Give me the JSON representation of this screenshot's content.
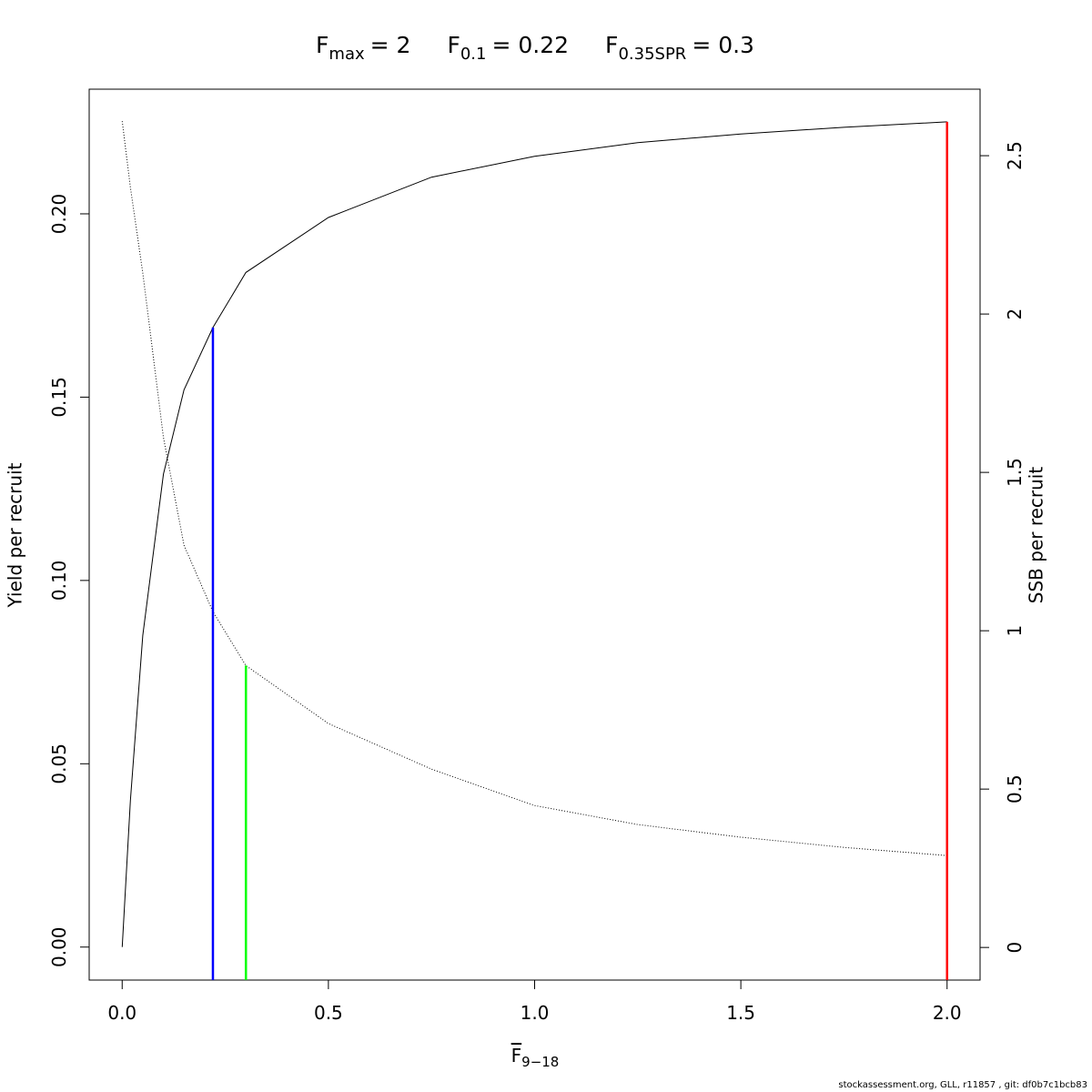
{
  "chart_data": {
    "type": "line",
    "title_parts": [
      {
        "text": "F",
        "sub": "max",
        "rest": "= 2"
      },
      {
        "text": "F",
        "sub": "0.1",
        "rest": "= 0.22"
      },
      {
        "text": "F",
        "sub": "0.35SPR",
        "rest": "= 0.3"
      }
    ],
    "x_label": {
      "text": "F",
      "sub": "9−18"
    },
    "y_label": "Yield per recruit",
    "y2_label": "SSB per recruit",
    "footer": "stockassessment.org, GLL, r11857 , git: df0b7c1bcb83",
    "x": [
      0,
      0.02,
      0.05,
      0.1,
      0.15,
      0.22,
      0.3,
      0.5,
      0.75,
      1,
      1.25,
      1.5,
      1.75,
      2
    ],
    "series": [
      {
        "color": "#000000",
        "linestyle": "solid",
        "values": [
          0,
          0.04,
          0.085,
          0.129,
          0.152,
          0.169,
          0.184,
          0.199,
          0.21,
          0.2157,
          0.2194,
          0.2218,
          0.2236,
          0.2251
        ]
      },
      {
        "color": "#000000",
        "linestyle": "dotted",
        "axis": "y2",
        "values": [
          2.609,
          2.4,
          2.13,
          1.61,
          1.27,
          1.06,
          0.89,
          0.707,
          0.563,
          0.448,
          0.388,
          0.348,
          0.316,
          0.29
        ]
      }
    ],
    "reference_lines": [
      {
        "x": 2,
        "top": 0.2251,
        "axis": "y",
        "color": "#ff0000"
      },
      {
        "x": 0.22,
        "top": 0.169,
        "axis": "y",
        "color": "#0000ff"
      },
      {
        "x": 0.3,
        "top": 0.89,
        "axis": "y2",
        "color": "#00ff00"
      }
    ],
    "xlim": [
      -0.08,
      2.08
    ],
    "ylim": [
      -0.009,
      0.234
    ],
    "y2lim": [
      -0.103,
      2.71
    ],
    "xticks": [
      {
        "value": 0,
        "label": "0.0"
      },
      {
        "value": 0.5,
        "label": "0.5"
      },
      {
        "value": 1,
        "label": "1.0"
      },
      {
        "value": 1.5,
        "label": "1.5"
      },
      {
        "value": 2,
        "label": "2.0"
      }
    ],
    "yticks": [
      {
        "value": 0,
        "label": "0.00"
      },
      {
        "value": 0.05,
        "label": "0.05"
      },
      {
        "value": 0.1,
        "label": "0.10"
      },
      {
        "value": 0.15,
        "label": "0.15"
      },
      {
        "value": 0.2,
        "label": "0.20"
      }
    ],
    "y2ticks": [
      0,
      0.5,
      1,
      1.5,
      2,
      2.5
    ],
    "grid": false
  }
}
